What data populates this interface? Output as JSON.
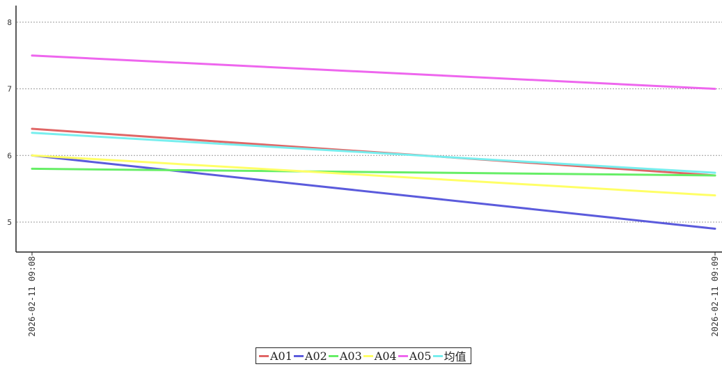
{
  "chart_data": {
    "type": "line",
    "x": [
      "2026-02-11 09:08",
      "2026-02-11 09:09"
    ],
    "series": [
      {
        "name": "A01",
        "values": [
          6.4,
          5.7
        ],
        "color": "#e06666"
      },
      {
        "name": "A02",
        "values": [
          6.0,
          4.9
        ],
        "color": "#5b5bdc"
      },
      {
        "name": "A03",
        "values": [
          5.8,
          5.7
        ],
        "color": "#66ee66"
      },
      {
        "name": "A04",
        "values": [
          6.0,
          5.4
        ],
        "color": "#ffff66"
      },
      {
        "name": "A05",
        "values": [
          7.5,
          7.0
        ],
        "color": "#ee66ee"
      },
      {
        "name": "均值",
        "values": [
          6.34,
          5.74
        ],
        "color": "#77eeee"
      }
    ],
    "yticks": [
      5,
      6,
      7,
      8
    ],
    "ylim": [
      4.55,
      8.25
    ],
    "grid": true,
    "legend": "bottom-center",
    "title": "",
    "xlabel": "",
    "ylabel": ""
  }
}
